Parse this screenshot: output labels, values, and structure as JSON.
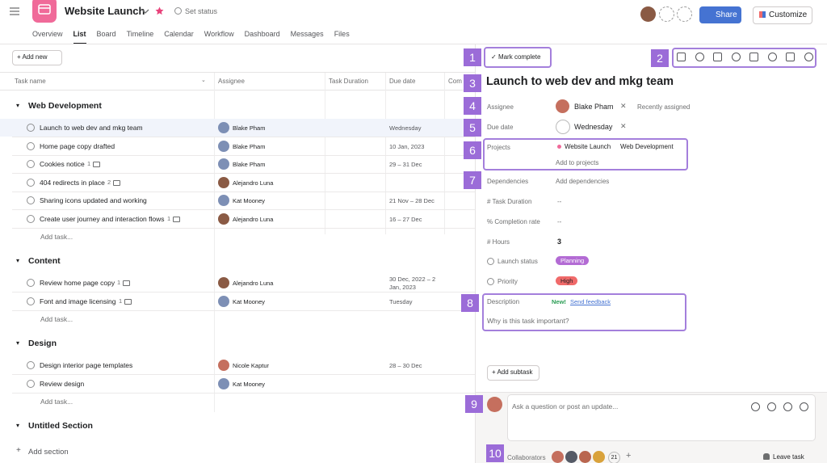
{
  "header": {
    "title": "Website Launch",
    "status": "Set status",
    "share": "Share",
    "customize": "Customize",
    "tabs": [
      "Overview",
      "List",
      "Board",
      "Timeline",
      "Calendar",
      "Workflow",
      "Dashboard",
      "Messages",
      "Files"
    ]
  },
  "toolbar": {
    "add_new": "Add new"
  },
  "table": {
    "columns": [
      "Task name",
      "Assignee",
      "Task Duration",
      "Due date",
      "Com"
    ],
    "sections": [
      {
        "name": "Web Development",
        "add_task": "Add task...",
        "tasks": [
          {
            "name": "Launch to web dev and mkg team",
            "assignee": "Blake Pham",
            "due": "Wednesday"
          },
          {
            "name": "Home page copy drafted",
            "assignee": "Blake Pham",
            "due": "10 Jan, 2023"
          },
          {
            "name": "Cookies notice",
            "count": "1",
            "assignee": "Blake Pham",
            "due": "29 – 31 Dec"
          },
          {
            "name": "404 redirects in place",
            "count": "2",
            "assignee": "Alejandro Luna"
          },
          {
            "name": "Sharing icons updated and working",
            "assignee": "Kat Mooney",
            "due": "21 Nov – 28 Dec"
          },
          {
            "name": "Create user journey and interaction flows",
            "count": "1",
            "assignee": "Alejandro Luna",
            "due": "16 – 27 Dec"
          }
        ]
      },
      {
        "name": "Content",
        "add_task": "Add task...",
        "tasks": [
          {
            "name": "Review home page copy",
            "count": "1",
            "assignee": "Alejandro Luna",
            "due": "30 Dec, 2022 – 2 Jan, 2023"
          },
          {
            "name": "Font and image licensing",
            "count": "1",
            "assignee": "Kat Mooney",
            "due": "Tuesday"
          }
        ]
      },
      {
        "name": "Design",
        "add_task": "Add task...",
        "tasks": [
          {
            "name": "Design interior page templates",
            "assignee": "Nicole Kaptur",
            "due": "28 – 30 Dec"
          },
          {
            "name": "Review design",
            "assignee": "Kat Mooney"
          }
        ]
      },
      {
        "name": "Untitled Section"
      }
    ],
    "add_section": "Add section"
  },
  "detail": {
    "mark_complete": "Mark complete",
    "title": "Launch to web dev and mkg team",
    "assignee_label": "Assignee",
    "assignee": "Blake Pham",
    "recently_assigned": "Recently assigned",
    "due_label": "Due date",
    "due": "Wednesday",
    "projects_label": "Projects",
    "project": "Website Launch",
    "project_section": "Web Development",
    "add_to_projects": "Add to projects",
    "dependencies_label": "Dependencies",
    "add_dependencies": "Add dependencies",
    "task_duration_label": "Task Duration",
    "task_duration": "--",
    "completion_label": "Completion rate",
    "completion": "--",
    "hours_label": "Hours",
    "hours": "3",
    "launch_status_label": "Launch status",
    "launch_status": "Planning",
    "priority_label": "Priority",
    "priority": "High",
    "description_label": "Description",
    "new_badge": "New!",
    "send_feedback": "Send feedback",
    "description_placeholder": "Why is this task important?",
    "add_subtask": "Add subtask",
    "comment_placeholder": "Ask a question or post an update...",
    "collaborators_label": "Collaborators",
    "collaborators_count": "21",
    "leave_task": "Leave task"
  },
  "callouts": [
    "1",
    "2",
    "3",
    "4",
    "5",
    "6",
    "7",
    "8",
    "9",
    "10"
  ]
}
